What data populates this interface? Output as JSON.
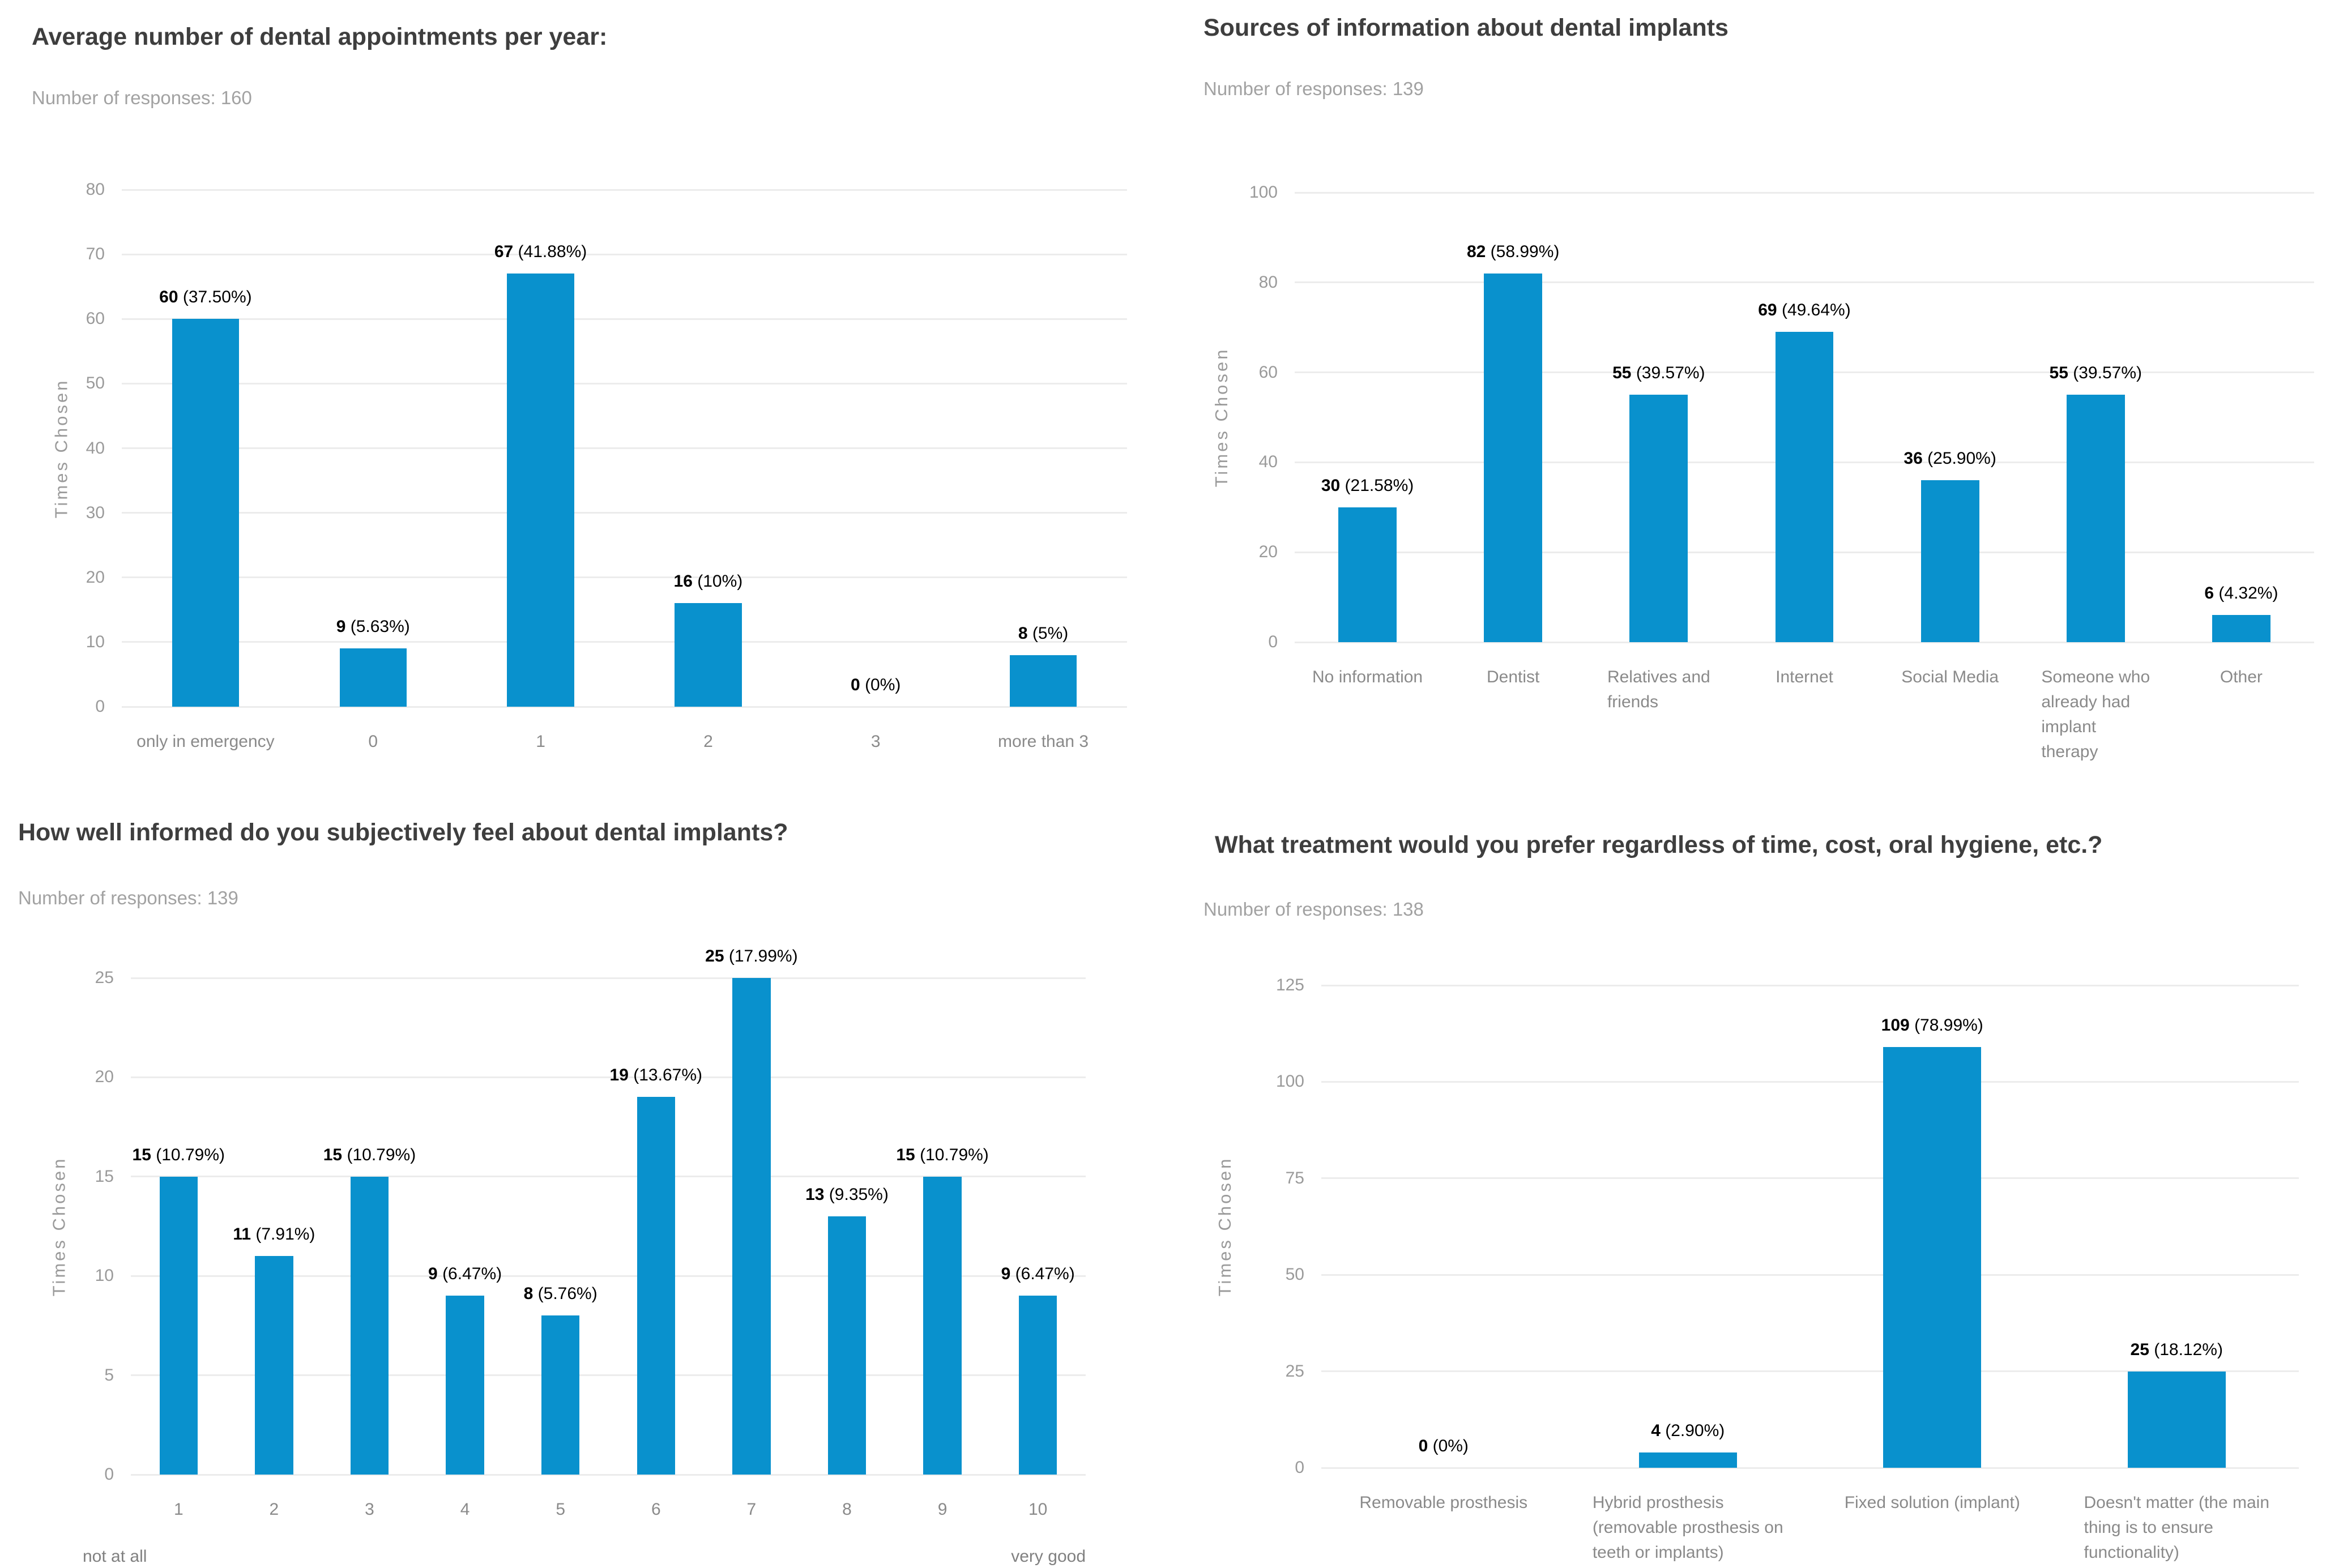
{
  "page": {
    "background": "#ffffff",
    "accent_color": "#0991cd"
  },
  "chart_data": [
    {
      "type": "bar",
      "title": "Average number of dental appointments per year:",
      "subtitle": "Number of responses: 160",
      "responses_shown": 160,
      "ylabel": "Times Chosen",
      "ylim": [
        0,
        80
      ],
      "yticks": [
        0,
        10,
        20,
        30,
        40,
        50,
        60,
        70,
        80
      ],
      "grid": true,
      "legend": false,
      "bar_color": "#0991cd",
      "categories": [
        "only in emergency",
        "0",
        "1",
        "2",
        "3",
        "more than 3"
      ],
      "values": [
        60,
        9,
        67,
        16,
        0,
        8
      ],
      "percent_labels": [
        "(37.50%)",
        "(5.63%)",
        "(41.88%)",
        "(10%)",
        "(0%)",
        "(5%)"
      ]
    },
    {
      "type": "bar",
      "title": "Sources of information about dental implants",
      "subtitle": "Number of responses: 139",
      "responses_shown": 139,
      "ylabel": "Times Chosen",
      "ylim": [
        0,
        100
      ],
      "yticks": [
        0,
        20,
        40,
        60,
        80,
        100
      ],
      "grid": true,
      "legend": false,
      "bar_color": "#0991cd",
      "categories": [
        "No information",
        "Dentist",
        "Relatives and\nfriends",
        "Internet",
        "Social Media",
        "Someone who\nalready had\nimplant\ntherapy",
        "Other"
      ],
      "values": [
        30,
        82,
        55,
        69,
        36,
        55,
        6
      ],
      "percent_labels": [
        "(21.58%)",
        "(58.99%)",
        "(39.57%)",
        "(49.64%)",
        "(25.90%)",
        "(39.57%)",
        "(4.32%)"
      ]
    },
    {
      "type": "bar",
      "title": "How well informed do you subjectively feel about dental implants?",
      "subtitle": "Number of responses: 139",
      "responses_shown": 139,
      "ylabel": "Times Chosen",
      "ylim": [
        0,
        25
      ],
      "yticks": [
        0,
        5,
        10,
        15,
        20,
        25
      ],
      "grid": true,
      "legend": false,
      "bar_color": "#0991cd",
      "categories": [
        "1",
        "2",
        "3",
        "4",
        "5",
        "6",
        "7",
        "8",
        "9",
        "10"
      ],
      "values": [
        15,
        11,
        15,
        9,
        8,
        19,
        25,
        13,
        15,
        9
      ],
      "percent_labels": [
        "(10.79%)",
        "(7.91%)",
        "(10.79%)",
        "(6.47%)",
        "(5.76%)",
        "(13.67%)",
        "(17.99%)",
        "(9.35%)",
        "(10.79%)",
        "(6.47%)"
      ],
      "axis_note_left": "not at all",
      "axis_note_right": "very good"
    },
    {
      "type": "bar",
      "title": "What treatment would you prefer regardless of time, cost, oral hygiene, etc.?",
      "subtitle": "Number of responses: 138",
      "responses_shown": 138,
      "ylabel": "Times Chosen",
      "ylim": [
        0,
        125
      ],
      "yticks": [
        0,
        25,
        50,
        75,
        100,
        125
      ],
      "grid": true,
      "legend": false,
      "bar_color": "#0991cd",
      "categories": [
        "Removable prosthesis",
        "Hybrid prosthesis\n(removable prosthesis on\nteeth or implants)",
        "Fixed solution (implant)",
        "Doesn't matter (the main\nthing is to ensure\nfunctionality)"
      ],
      "values": [
        0,
        4,
        109,
        25
      ],
      "percent_labels": [
        "(0%)",
        "(2.90%)",
        "(78.99%)",
        "(18.12%)"
      ]
    }
  ]
}
